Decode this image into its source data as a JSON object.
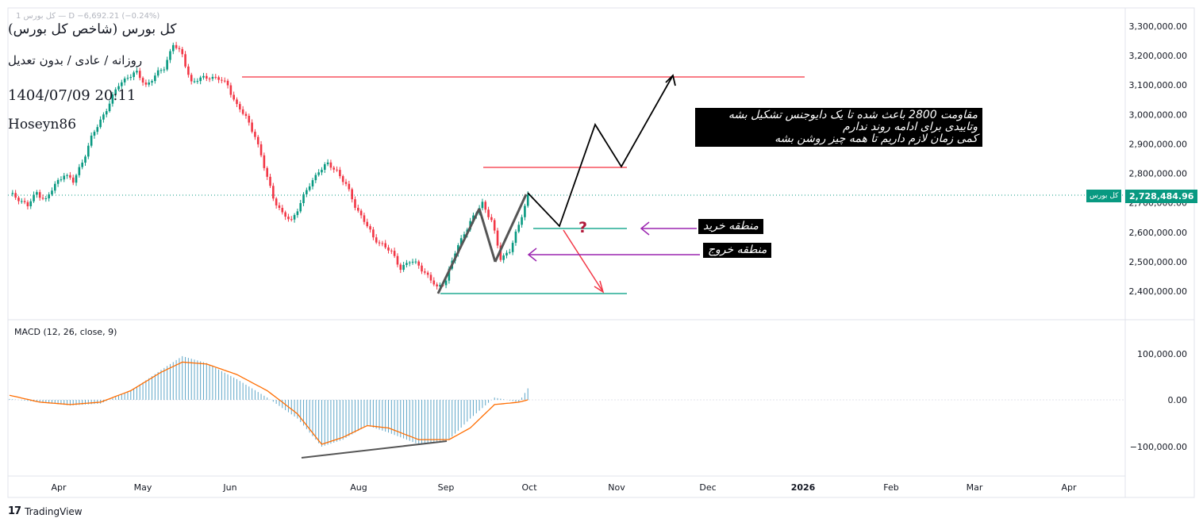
{
  "header": {
    "top_info": "کل بورس 1 — D −6,692.21 (−0.24%)",
    "title": "کل بورس (شاخص کل بورس)",
    "subtitle": "روزانه / عادی / بدون تعدیل",
    "datetime": "1404/07/09 20:11",
    "author": "Hoseyn86"
  },
  "annotations": {
    "resistance": "مقاومت 2800 باعث شده تا یک دایوجنس تشکیل بشه\nوتاییدی برای ادامه روند ندارم\nکمی زمان لازم داریم تا همه چیز روشن بشه",
    "buy_zone": "منطقه خرید",
    "exit_zone": "منطقه خروج",
    "question": "?"
  },
  "last_price": {
    "symbol": "کل بورس",
    "value": "2,728,484.96"
  },
  "macd_label": "MACD (12, 26, close, 9)",
  "logo_text": "TradingView",
  "colors": {
    "up": "#089981",
    "down": "#f23645",
    "macd_line": "#2962ff",
    "signal_line": "#ff6d00",
    "hist": "#5fa6c8",
    "level_red": "#f7525f",
    "level_teal": "#22ab94"
  },
  "chart_data": [
    {
      "type": "candlestick",
      "ylim": [
        2350000,
        3330000
      ],
      "y_ticks": [
        "3,300,000.00",
        "3,200,000.00",
        "3,100,000.00",
        "3,000,000.00",
        "2,900,000.00",
        "2,800,000.00",
        "2,700,000.00",
        "2,600,000.00",
        "2,500,000.00",
        "2,400,000.00"
      ],
      "x_ticks": [
        "Apr",
        "May",
        "Jun",
        "Aug",
        "Sep",
        "Oct",
        "Nov",
        "Dec",
        "2026",
        "Feb",
        "Mar",
        "Apr"
      ],
      "close_path": [
        [
          0,
          2730000
        ],
        [
          3,
          2715000
        ],
        [
          6,
          2690000
        ],
        [
          9,
          2735000
        ],
        [
          12,
          2710000
        ],
        [
          15,
          2760000
        ],
        [
          18,
          2800000
        ],
        [
          21,
          2770000
        ],
        [
          24,
          2840000
        ],
        [
          27,
          2920000
        ],
        [
          30,
          2980000
        ],
        [
          33,
          3040000
        ],
        [
          36,
          3100000
        ],
        [
          39,
          3130000
        ],
        [
          42,
          3140000
        ],
        [
          45,
          3100000
        ],
        [
          48,
          3130000
        ],
        [
          51,
          3160000
        ],
        [
          54,
          3240000
        ],
        [
          57,
          3200000
        ],
        [
          60,
          3110000
        ],
        [
          63,
          3120000
        ],
        [
          66,
          3130000
        ],
        [
          69,
          3120000
        ],
        [
          72,
          3100000
        ],
        [
          75,
          3030000
        ],
        [
          78,
          2990000
        ],
        [
          81,
          2930000
        ],
        [
          84,
          2820000
        ],
        [
          87,
          2720000
        ],
        [
          90,
          2660000
        ],
        [
          93,
          2640000
        ],
        [
          96,
          2700000
        ],
        [
          99,
          2760000
        ],
        [
          102,
          2810000
        ],
        [
          105,
          2830000
        ],
        [
          108,
          2810000
        ],
        [
          111,
          2760000
        ],
        [
          114,
          2690000
        ],
        [
          117,
          2640000
        ],
        [
          120,
          2580000
        ],
        [
          123,
          2560000
        ],
        [
          126,
          2530000
        ],
        [
          129,
          2480000
        ],
        [
          132,
          2500000
        ],
        [
          135,
          2490000
        ],
        [
          138,
          2450000
        ],
        [
          141,
          2410000
        ],
        [
          144,
          2440000
        ],
        [
          147,
          2530000
        ],
        [
          150,
          2600000
        ],
        [
          153,
          2650000
        ],
        [
          156,
          2700000
        ],
        [
          159,
          2640000
        ],
        [
          162,
          2510000
        ],
        [
          165,
          2540000
        ],
        [
          168,
          2620000
        ],
        [
          171,
          2728484.96
        ]
      ],
      "last_value": 2728484.96
    },
    {
      "type": "macd",
      "name": "MACD (12, 26, close, 9)",
      "ylim": [
        -130000,
        150000
      ],
      "y_ticks": [
        "100,000.00",
        "0.00",
        "−100,000.00"
      ],
      "macd": [
        [
          0,
          2000
        ],
        [
          10,
          -5000
        ],
        [
          20,
          -12000
        ],
        [
          30,
          -8000
        ],
        [
          40,
          20000
        ],
        [
          50,
          65000
        ],
        [
          57,
          95000
        ],
        [
          65,
          80000
        ],
        [
          75,
          45000
        ],
        [
          85,
          5000
        ],
        [
          95,
          -40000
        ],
        [
          103,
          -100000
        ],
        [
          110,
          -85000
        ],
        [
          118,
          -55000
        ],
        [
          125,
          -70000
        ],
        [
          135,
          -95000
        ],
        [
          145,
          -85000
        ],
        [
          152,
          -40000
        ],
        [
          160,
          5000
        ],
        [
          168,
          -5000
        ],
        [
          171,
          25000
        ]
      ],
      "signal": [
        [
          0,
          10000
        ],
        [
          10,
          -5000
        ],
        [
          20,
          -10000
        ],
        [
          30,
          -5000
        ],
        [
          40,
          20000
        ],
        [
          50,
          60000
        ],
        [
          57,
          82000
        ],
        [
          65,
          78000
        ],
        [
          75,
          55000
        ],
        [
          85,
          20000
        ],
        [
          95,
          -30000
        ],
        [
          103,
          -95000
        ],
        [
          110,
          -80000
        ],
        [
          118,
          -55000
        ],
        [
          125,
          -60000
        ],
        [
          135,
          -85000
        ],
        [
          145,
          -85000
        ],
        [
          152,
          -60000
        ],
        [
          160,
          -10000
        ],
        [
          168,
          -5000
        ],
        [
          171,
          0
        ]
      ]
    }
  ]
}
